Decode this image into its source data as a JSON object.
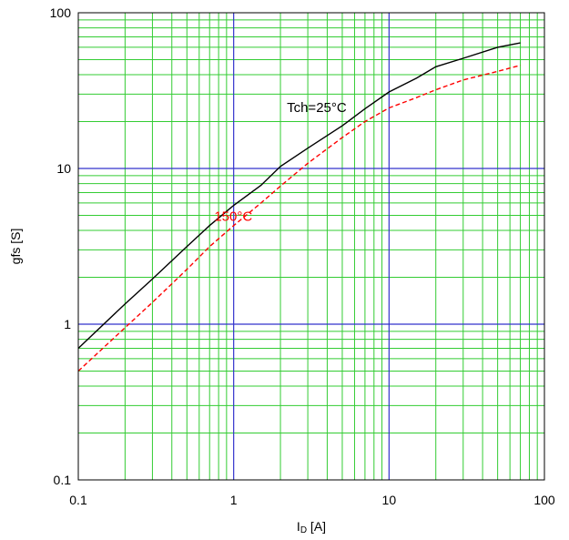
{
  "chart_data": {
    "type": "line",
    "xlabel": "ID [A]",
    "xlabel_main": "I",
    "xlabel_sub": "D",
    "xlabel_unit": " [A]",
    "ylabel": "gfs [S]",
    "x_scale": "log",
    "y_scale": "log",
    "xlim": [
      0.1,
      100
    ],
    "ylim": [
      0.1,
      100
    ],
    "x_ticks": [
      "0.1",
      "1",
      "10",
      "100"
    ],
    "y_ticks": [
      "0.1",
      "1",
      "10",
      "100"
    ],
    "grid": true,
    "colors": {
      "major_grid": "#3333cc",
      "minor_grid": "#33cc33",
      "frame": "#000000"
    },
    "series": [
      {
        "name": "Tch=25°C",
        "color": "#000000",
        "style": "solid",
        "points": [
          [
            0.1,
            0.7
          ],
          [
            0.2,
            1.35
          ],
          [
            0.3,
            1.95
          ],
          [
            0.5,
            3.15
          ],
          [
            0.7,
            4.3
          ],
          [
            1,
            5.8
          ],
          [
            1.5,
            7.8
          ],
          [
            2,
            10.3
          ],
          [
            3,
            13.5
          ],
          [
            5,
            18.8
          ],
          [
            7,
            24.2
          ],
          [
            10,
            31
          ],
          [
            15,
            38
          ],
          [
            20,
            45
          ],
          [
            30,
            51
          ],
          [
            50,
            60
          ],
          [
            70,
            64
          ]
        ]
      },
      {
        "name": "150°C",
        "color": "#ff0000",
        "style": "dashed",
        "points": [
          [
            0.1,
            0.5
          ],
          [
            0.2,
            0.95
          ],
          [
            0.3,
            1.38
          ],
          [
            0.5,
            2.25
          ],
          [
            0.7,
            3.15
          ],
          [
            1,
            4.3
          ],
          [
            1.5,
            6.0
          ],
          [
            2,
            7.7
          ],
          [
            3,
            10.8
          ],
          [
            5,
            15.8
          ],
          [
            7,
            20
          ],
          [
            10,
            24.5
          ],
          [
            15,
            28.5
          ],
          [
            20,
            32
          ],
          [
            30,
            37
          ],
          [
            50,
            42
          ],
          [
            70,
            46
          ]
        ]
      }
    ],
    "annotations": [
      {
        "text": "Tch=25°C",
        "x": 2.2,
        "y": 23,
        "color": "#000000"
      },
      {
        "text": "150°C",
        "x": 0.75,
        "y": 4.6,
        "color": "#ff0000"
      }
    ]
  }
}
